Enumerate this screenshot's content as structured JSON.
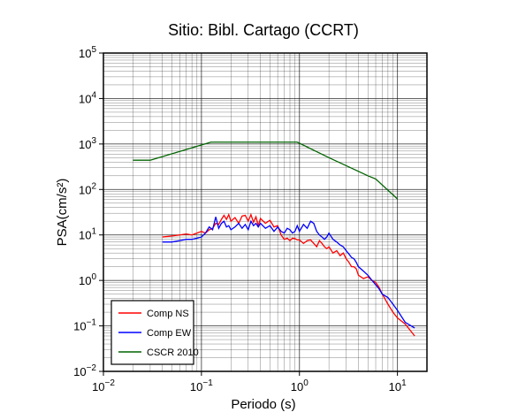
{
  "chart_data": {
    "type": "line",
    "title": "Sitio: Bibl. Cartago (CCRT)",
    "xlabel": "Periodo (s)",
    "ylabel": "PSA(cm/s²)",
    "x_scale": "log",
    "y_scale": "log",
    "xlim": [
      0.01,
      20
    ],
    "ylim": [
      0.01,
      100000
    ],
    "grid": true,
    "legend_position": "bottom-left",
    "x_ticks": [
      {
        "value": 0.01,
        "base": "10",
        "exp": "−2"
      },
      {
        "value": 0.1,
        "base": "10",
        "exp": "−1"
      },
      {
        "value": 1,
        "base": "10",
        "exp": "0"
      },
      {
        "value": 10,
        "base": "10",
        "exp": "1"
      }
    ],
    "y_ticks": [
      {
        "value": 0.01,
        "base": "10",
        "exp": "−2"
      },
      {
        "value": 0.1,
        "base": "10",
        "exp": "−1"
      },
      {
        "value": 1,
        "base": "10",
        "exp": "0"
      },
      {
        "value": 10,
        "base": "10",
        "exp": "1"
      },
      {
        "value": 100,
        "base": "10",
        "exp": "2"
      },
      {
        "value": 1000,
        "base": "10",
        "exp": "3"
      },
      {
        "value": 10000,
        "base": "10",
        "exp": "4"
      },
      {
        "value": 100000,
        "base": "10",
        "exp": "5"
      }
    ],
    "series": [
      {
        "name": "Comp NS",
        "color": "#ff0000",
        "x": [
          0.04,
          0.05,
          0.06,
          0.07,
          0.08,
          0.09,
          0.1,
          0.11,
          0.12,
          0.13,
          0.14,
          0.15,
          0.16,
          0.17,
          0.18,
          0.19,
          0.2,
          0.22,
          0.24,
          0.26,
          0.28,
          0.3,
          0.32,
          0.34,
          0.36,
          0.38,
          0.4,
          0.45,
          0.5,
          0.55,
          0.6,
          0.65,
          0.7,
          0.75,
          0.8,
          0.85,
          0.9,
          0.95,
          1.0,
          1.1,
          1.2,
          1.3,
          1.4,
          1.5,
          1.6,
          1.7,
          1.8,
          1.9,
          2.0,
          2.2,
          2.4,
          2.6,
          2.8,
          3.0,
          3.2,
          3.4,
          3.6,
          3.8,
          4.0,
          4.5,
          5.0,
          5.5,
          6.0,
          6.5,
          7.0,
          8.0,
          9.0,
          10.0,
          12.0,
          15.0
        ],
        "y": [
          9,
          9.5,
          10,
          10.5,
          10,
          11,
          12,
          11,
          13,
          14,
          18,
          17,
          22,
          27,
          22,
          28,
          20,
          24,
          18,
          26,
          27,
          20,
          28,
          19,
          25,
          16,
          23,
          18,
          21,
          15,
          16,
          10,
          8,
          8.5,
          7.5,
          8.5,
          8.3,
          7.8,
          7.8,
          6.5,
          7.5,
          7.8,
          6.5,
          5.5,
          7.5,
          6.5,
          5.5,
          5,
          5.5,
          4,
          4.5,
          3.5,
          4,
          3,
          2.5,
          2,
          2,
          1.8,
          1.3,
          1.1,
          1.2,
          1.0,
          0.9,
          0.7,
          0.5,
          0.3,
          0.2,
          0.15,
          0.11,
          0.06
        ]
      },
      {
        "name": "Comp EW",
        "color": "#0000ff",
        "x": [
          0.04,
          0.05,
          0.06,
          0.07,
          0.08,
          0.09,
          0.1,
          0.11,
          0.12,
          0.13,
          0.14,
          0.15,
          0.16,
          0.17,
          0.18,
          0.19,
          0.2,
          0.22,
          0.24,
          0.26,
          0.28,
          0.3,
          0.32,
          0.34,
          0.36,
          0.38,
          0.4,
          0.45,
          0.5,
          0.55,
          0.6,
          0.65,
          0.7,
          0.75,
          0.8,
          0.85,
          0.9,
          0.95,
          1.0,
          1.1,
          1.2,
          1.3,
          1.4,
          1.5,
          1.6,
          1.7,
          1.8,
          1.9,
          2.0,
          2.2,
          2.4,
          2.6,
          2.8,
          3.0,
          3.2,
          3.4,
          3.6,
          3.8,
          4.0,
          4.5,
          5.0,
          5.5,
          6.0,
          6.5,
          7.0,
          8.0,
          9.0,
          10.0,
          12.0,
          15.0
        ],
        "y": [
          7,
          7,
          7.5,
          8,
          8,
          8.5,
          9,
          11,
          15,
          13,
          25,
          14,
          18,
          20,
          15,
          16,
          13,
          15,
          18,
          14,
          17,
          13,
          20,
          16,
          18,
          15,
          18,
          14,
          16,
          12,
          15,
          12,
          11,
          14,
          13,
          11,
          12,
          16,
          12,
          17,
          14,
          20,
          18,
          12,
          10,
          9,
          8,
          9,
          11,
          8,
          7,
          6,
          5.5,
          4.5,
          3.8,
          3.2,
          3.0,
          2.5,
          2.0,
          1.6,
          1.3,
          1.0,
          0.8,
          0.65,
          0.5,
          0.42,
          0.3,
          0.22,
          0.12,
          0.09
        ]
      },
      {
        "name": "CSCR 2010",
        "color": "#006400",
        "x": [
          0.02,
          0.03,
          0.125,
          0.2,
          0.5,
          0.95,
          2.0,
          5.0,
          6.0,
          10.0
        ],
        "y": [
          440,
          440,
          1100,
          1100,
          1100,
          1100,
          500,
          200,
          170,
          62
        ]
      }
    ]
  }
}
